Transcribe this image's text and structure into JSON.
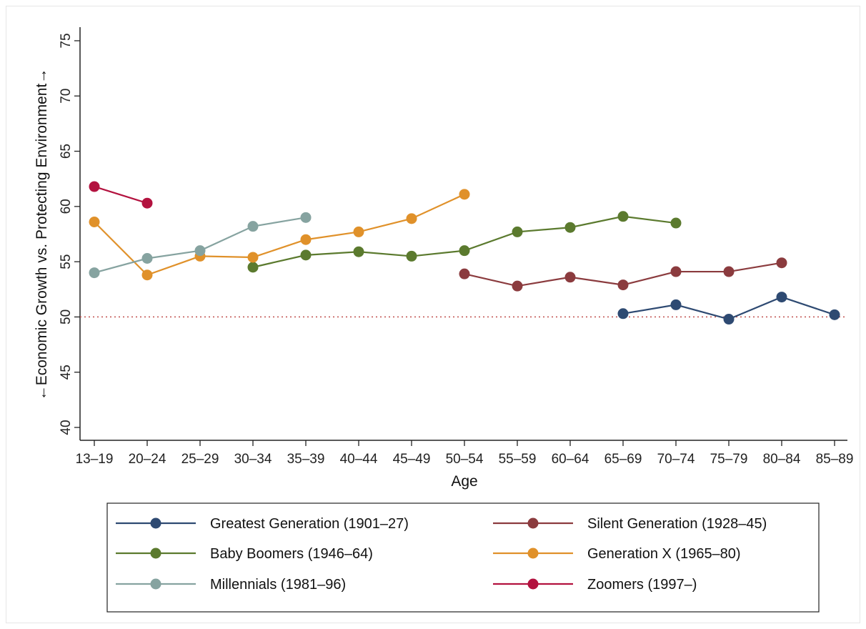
{
  "chart_data": {
    "type": "line",
    "xlabel": "Age",
    "ylabel": "←Economic Growth vs. Protecting Environment→",
    "categories": [
      "13–19",
      "20–24",
      "25–29",
      "30–34",
      "35–39",
      "40–44",
      "45–49",
      "50–54",
      "55–59",
      "60–64",
      "65–69",
      "70–74",
      "75–79",
      "80–84",
      "85–89"
    ],
    "y_ticks": [
      "40",
      "45",
      "50",
      "55",
      "60",
      "65",
      "70",
      "75"
    ],
    "ylim": [
      40,
      75
    ],
    "reference_line": 50,
    "reference_line_color": "#c0504d",
    "grid": false,
    "legend_position": "bottom",
    "series": [
      {
        "name": "Greatest Generation (1901–27)",
        "color": "#2e4a72",
        "values": [
          null,
          null,
          null,
          null,
          null,
          null,
          null,
          null,
          null,
          null,
          50.3,
          51.1,
          49.8,
          51.8,
          50.2
        ]
      },
      {
        "name": "Silent Generation (1928–45)",
        "color": "#8b3b3e",
        "values": [
          null,
          null,
          null,
          null,
          null,
          null,
          null,
          53.9,
          52.8,
          53.6,
          52.9,
          54.1,
          54.1,
          54.9,
          null
        ]
      },
      {
        "name": "Baby Boomers (1946–64)",
        "color": "#5b7a2e",
        "values": [
          null,
          null,
          null,
          54.5,
          55.6,
          55.9,
          55.5,
          56.0,
          57.7,
          58.1,
          59.1,
          58.5,
          null,
          null,
          null
        ]
      },
      {
        "name": "Generation X (1965–80)",
        "color": "#e0912a",
        "values": [
          58.6,
          53.8,
          55.5,
          55.4,
          57.0,
          57.7,
          58.9,
          61.1,
          null,
          null,
          null,
          null,
          null,
          null,
          null
        ]
      },
      {
        "name": "Millennials (1981–96)",
        "color": "#86a3a0",
        "values": [
          54.0,
          55.3,
          56.0,
          58.2,
          59.0,
          null,
          null,
          null,
          null,
          null,
          null,
          null,
          null,
          null,
          null
        ]
      },
      {
        "name": "Zoomers (1997–)",
        "color": "#b3123f",
        "values": [
          61.8,
          60.3,
          null,
          null,
          null,
          null,
          null,
          null,
          null,
          null,
          null,
          null,
          null,
          null,
          null
        ]
      }
    ]
  }
}
